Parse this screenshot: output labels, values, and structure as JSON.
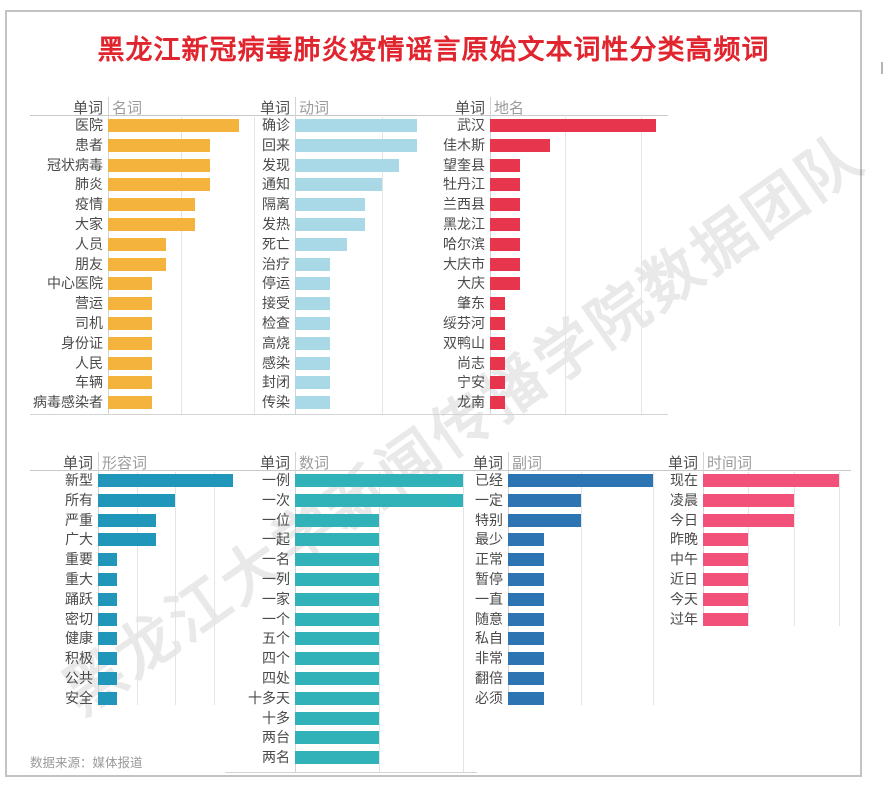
{
  "title": "黑龙江新冠病毒肺炎疫情谣言原始文本词性分类高频词",
  "title_color": "#e1252f",
  "source_note": "数据来源：媒体报道",
  "watermark": "黑龙江大学新闻传播学院数据团队",
  "column_header": "单词",
  "values_note": "no numeric labels shown in chart; values estimated from bar lengths against gridlines",
  "colors": {
    "nouns": "#F3B33C",
    "verbs": "#A9D9E6",
    "places": "#E8354E",
    "adjectives": "#2196BB",
    "numerals": "#30B2B8",
    "adverbs": "#2D74B2",
    "time_words": "#F2527A",
    "axis_line": "#d4d4d4",
    "grid_line": "#e4e4e4"
  },
  "chart_data": [
    {
      "id": "nouns",
      "type": "bar",
      "orientation": "horizontal",
      "pos_label": "名词",
      "bar_color": "#F3B33C",
      "grid": "on",
      "legend": "none",
      "categories": [
        "医院",
        "患者",
        "冠状病毒",
        "肺炎",
        "疫情",
        "大家",
        "人员",
        "朋友",
        "中心医院",
        "营运",
        "司机",
        "身份证",
        "人民",
        "车辆",
        "病毒感染者"
      ],
      "values": [
        9,
        7,
        7,
        7,
        6,
        6,
        4,
        4,
        3,
        3,
        3,
        3,
        3,
        3,
        3
      ]
    },
    {
      "id": "verbs",
      "type": "bar",
      "orientation": "horizontal",
      "pos_label": "动词",
      "bar_color": "#A9D9E6",
      "grid": "on",
      "legend": "none",
      "categories": [
        "确诊",
        "回来",
        "发现",
        "通知",
        "隔离",
        "发热",
        "死亡",
        "治疗",
        "停运",
        "接受",
        "检查",
        "高烧",
        "感染",
        "封闭",
        "传染"
      ],
      "values": [
        7,
        7,
        6,
        5,
        4,
        4,
        3,
        2,
        2,
        2,
        2,
        2,
        2,
        2,
        2
      ]
    },
    {
      "id": "places",
      "type": "bar",
      "orientation": "horizontal",
      "pos_label": "地名",
      "bar_color": "#E8354E",
      "grid": "on",
      "legend": "none",
      "categories": [
        "武汉",
        "佳木斯",
        "望奎县",
        "牡丹江",
        "兰西县",
        "黑龙江",
        "哈尔滨",
        "大庆市",
        "大庆",
        "肇东",
        "绥芬河",
        "双鸭山",
        "尚志",
        "宁安",
        "龙南"
      ],
      "values": [
        11,
        4,
        2,
        2,
        2,
        2,
        2,
        2,
        2,
        1,
        1,
        1,
        1,
        1,
        1
      ]
    },
    {
      "id": "adjectives",
      "type": "bar",
      "orientation": "horizontal",
      "pos_label": "形容词",
      "bar_color": "#2196BB",
      "grid": "on",
      "legend": "none",
      "categories": [
        "新型",
        "所有",
        "严重",
        "广大",
        "重要",
        "重大",
        "踊跃",
        "密切",
        "健康",
        "积极",
        "公共",
        "安全"
      ],
      "values": [
        7,
        4,
        3,
        3,
        1,
        1,
        1,
        1,
        1,
        1,
        1,
        1
      ]
    },
    {
      "id": "numerals",
      "type": "bar",
      "orientation": "horizontal",
      "pos_label": "数词",
      "bar_color": "#30B2B8",
      "grid": "on",
      "legend": "none",
      "categories": [
        "一例",
        "一次",
        "一位",
        "一起",
        "一名",
        "一列",
        "一家",
        "一个",
        "五个",
        "四个",
        "四处",
        "十多天",
        "十多",
        "两台",
        "两名"
      ],
      "values": [
        10,
        10,
        5,
        5,
        5,
        5,
        5,
        5,
        5,
        5,
        5,
        5,
        5,
        5,
        5
      ]
    },
    {
      "id": "adverbs",
      "type": "bar",
      "orientation": "horizontal",
      "pos_label": "副词",
      "bar_color": "#2D74B2",
      "grid": "on",
      "legend": "none",
      "categories": [
        "已经",
        "一定",
        "特别",
        "最少",
        "正常",
        "暂停",
        "一直",
        "随意",
        "私自",
        "非常",
        "翻倍",
        "必须"
      ],
      "values": [
        4,
        2,
        2,
        1,
        1,
        1,
        1,
        1,
        1,
        1,
        1,
        1
      ]
    },
    {
      "id": "time_words",
      "type": "bar",
      "orientation": "horizontal",
      "pos_label": "时间词",
      "bar_color": "#F2527A",
      "grid": "on",
      "legend": "none",
      "categories": [
        "现在",
        "凌晨",
        "今日",
        "昨晚",
        "中午",
        "近日",
        "今天",
        "过年"
      ],
      "values": [
        3,
        2,
        2,
        1,
        1,
        1,
        1,
        1
      ]
    }
  ]
}
